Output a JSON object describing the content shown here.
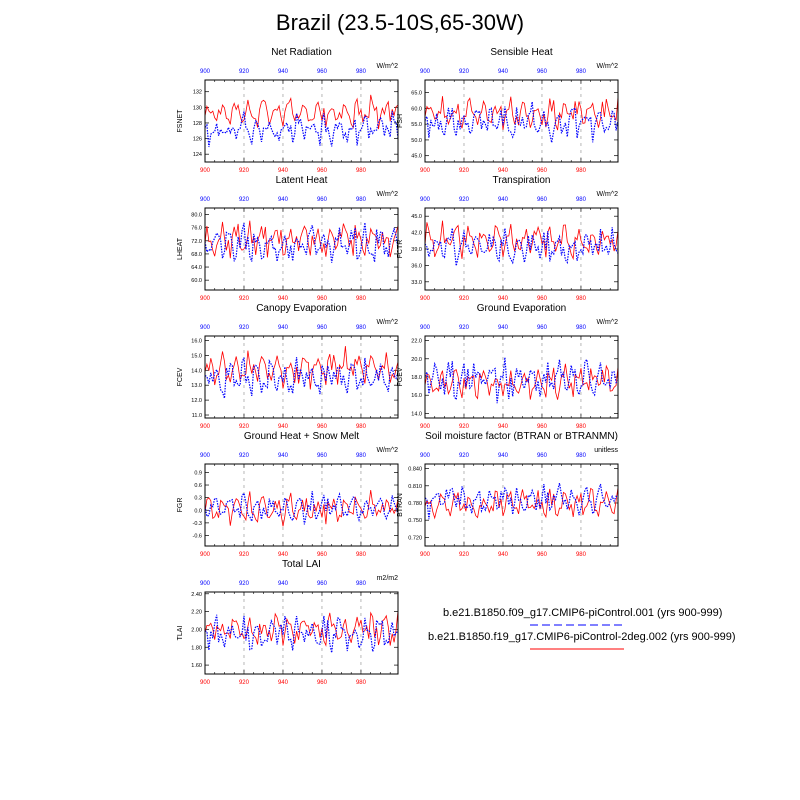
{
  "title": "Brazil (23.5-10S,65-30W)",
  "colors": {
    "case1": "#0000ff",
    "case2": "#ff0000",
    "grid": "#888888",
    "axis": "#000000"
  },
  "legend": {
    "case1": "b.e21.B1850.f09_g17.CMIP6-piControl.001 (yrs 900-999)",
    "case2": "b.e21.B1850.f19_g17.CMIP6-piControl-2deg.002 (yrs 900-999)"
  },
  "chart_data": [
    {
      "type": "line",
      "title": "Net Radiation",
      "ylabel": "FSNET",
      "units": "W/m^2",
      "xlim": [
        900,
        999
      ],
      "ylim": [
        123,
        133.5
      ],
      "yticks": [
        124,
        126,
        128,
        130,
        132
      ],
      "decimals": 0,
      "xticks": [
        900,
        920,
        940,
        960,
        980
      ],
      "seed": 11,
      "series": [
        {
          "name": "case1",
          "mean": 127.2,
          "amp": 1.9
        },
        {
          "name": "case2",
          "mean": 129.4,
          "amp": 1.8
        }
      ]
    },
    {
      "type": "line",
      "title": "Sensible Heat",
      "ylabel": "FSH",
      "units": "W/m^2",
      "xlim": [
        900,
        999
      ],
      "ylim": [
        43,
        69
      ],
      "yticks": [
        45.0,
        50.0,
        55.0,
        60.0,
        65.0
      ],
      "decimals": 1,
      "xticks": [
        900,
        920,
        940,
        960,
        980
      ],
      "seed": 23,
      "series": [
        {
          "name": "case1",
          "mean": 55.5,
          "amp": 5.0
        },
        {
          "name": "case2",
          "mean": 58.5,
          "amp": 4.2
        }
      ]
    },
    {
      "type": "line",
      "title": "Latent Heat",
      "ylabel": "LHEAT",
      "units": "W/m^2",
      "xlim": [
        900,
        999
      ],
      "ylim": [
        57,
        82
      ],
      "yticks": [
        60.0,
        64.0,
        68.0,
        72.0,
        76.0,
        80.0
      ],
      "decimals": 1,
      "xticks": [
        900,
        920,
        940,
        960,
        980
      ],
      "seed": 37,
      "series": [
        {
          "name": "case1",
          "mean": 71.0,
          "amp": 5.5
        },
        {
          "name": "case2",
          "mean": 72.5,
          "amp": 5.0
        }
      ]
    },
    {
      "type": "line",
      "title": "Transpiration",
      "ylabel": "FCTR",
      "units": "W/m^2",
      "xlim": [
        900,
        999
      ],
      "ylim": [
        31.5,
        46.5
      ],
      "yticks": [
        33.0,
        36.0,
        39.0,
        42.0,
        45.0
      ],
      "decimals": 1,
      "xticks": [
        900,
        920,
        940,
        960,
        980
      ],
      "seed": 41,
      "series": [
        {
          "name": "case1",
          "mean": 39.5,
          "amp": 3.2
        },
        {
          "name": "case2",
          "mean": 40.5,
          "amp": 2.8
        }
      ]
    },
    {
      "type": "line",
      "title": "Canopy Evaporation",
      "ylabel": "FCEV",
      "units": "W/m^2",
      "xlim": [
        900,
        999
      ],
      "ylim": [
        10.8,
        16.3
      ],
      "yticks": [
        11.0,
        12.0,
        13.0,
        14.0,
        15.0,
        16.0
      ],
      "decimals": 1,
      "xticks": [
        900,
        920,
        940,
        960,
        980
      ],
      "seed": 53,
      "series": [
        {
          "name": "case1",
          "mean": 13.5,
          "amp": 1.1
        },
        {
          "name": "case2",
          "mean": 14.2,
          "amp": 1.1
        }
      ]
    },
    {
      "type": "line",
      "title": "Ground Evaporation",
      "ylabel": "FGEV",
      "units": "W/m^2",
      "xlim": [
        900,
        999
      ],
      "ylim": [
        13.5,
        22.5
      ],
      "yticks": [
        14.0,
        16.0,
        18.0,
        20.0,
        22.0
      ],
      "decimals": 1,
      "xticks": [
        900,
        920,
        940,
        960,
        980
      ],
      "seed": 67,
      "series": [
        {
          "name": "case1",
          "mean": 17.8,
          "amp": 2.0
        },
        {
          "name": "case2",
          "mean": 17.5,
          "amp": 1.6
        }
      ]
    },
    {
      "type": "line",
      "title": "Ground Heat + Snow Melt",
      "ylabel": "FGR",
      "units": "W/m^2",
      "xlim": [
        900,
        999
      ],
      "ylim": [
        -0.85,
        1.1
      ],
      "yticks": [
        -0.6,
        -0.3,
        0.0,
        0.3,
        0.6,
        0.9
      ],
      "decimals": 1,
      "xticks": [
        900,
        920,
        940,
        960,
        980
      ],
      "seed": 79,
      "series": [
        {
          "name": "case1",
          "mean": 0.05,
          "amp": 0.3
        },
        {
          "name": "case2",
          "mean": 0.05,
          "amp": 0.35
        }
      ]
    },
    {
      "type": "line",
      "title": "Soil moisture factor (BTRAN or BTRANMN)",
      "ylabel": "BTRAN",
      "units": "unitless",
      "xlim": [
        900,
        999
      ],
      "ylim": [
        0.705,
        0.848
      ],
      "yticks": [
        0.72,
        0.75,
        0.78,
        0.81,
        0.84
      ],
      "decimals": 3,
      "xticks": [
        900,
        920,
        940,
        960,
        980
      ],
      "seed": 97,
      "series": [
        {
          "name": "case1",
          "mean": 0.785,
          "amp": 0.025
        },
        {
          "name": "case2",
          "mean": 0.78,
          "amp": 0.022
        }
      ]
    },
    {
      "type": "line",
      "title": "Total LAI",
      "ylabel": "TLAI",
      "units": "m2/m2",
      "xlim": [
        900,
        999
      ],
      "ylim": [
        1.5,
        2.42
      ],
      "yticks": [
        1.6,
        1.8,
        2.0,
        2.2,
        2.4
      ],
      "decimals": 2,
      "xticks": [
        900,
        920,
        940,
        960,
        980
      ],
      "seed": 131,
      "series": [
        {
          "name": "case1",
          "mean": 1.95,
          "amp": 0.18
        },
        {
          "name": "case2",
          "mean": 2.0,
          "amp": 0.16
        }
      ]
    }
  ]
}
